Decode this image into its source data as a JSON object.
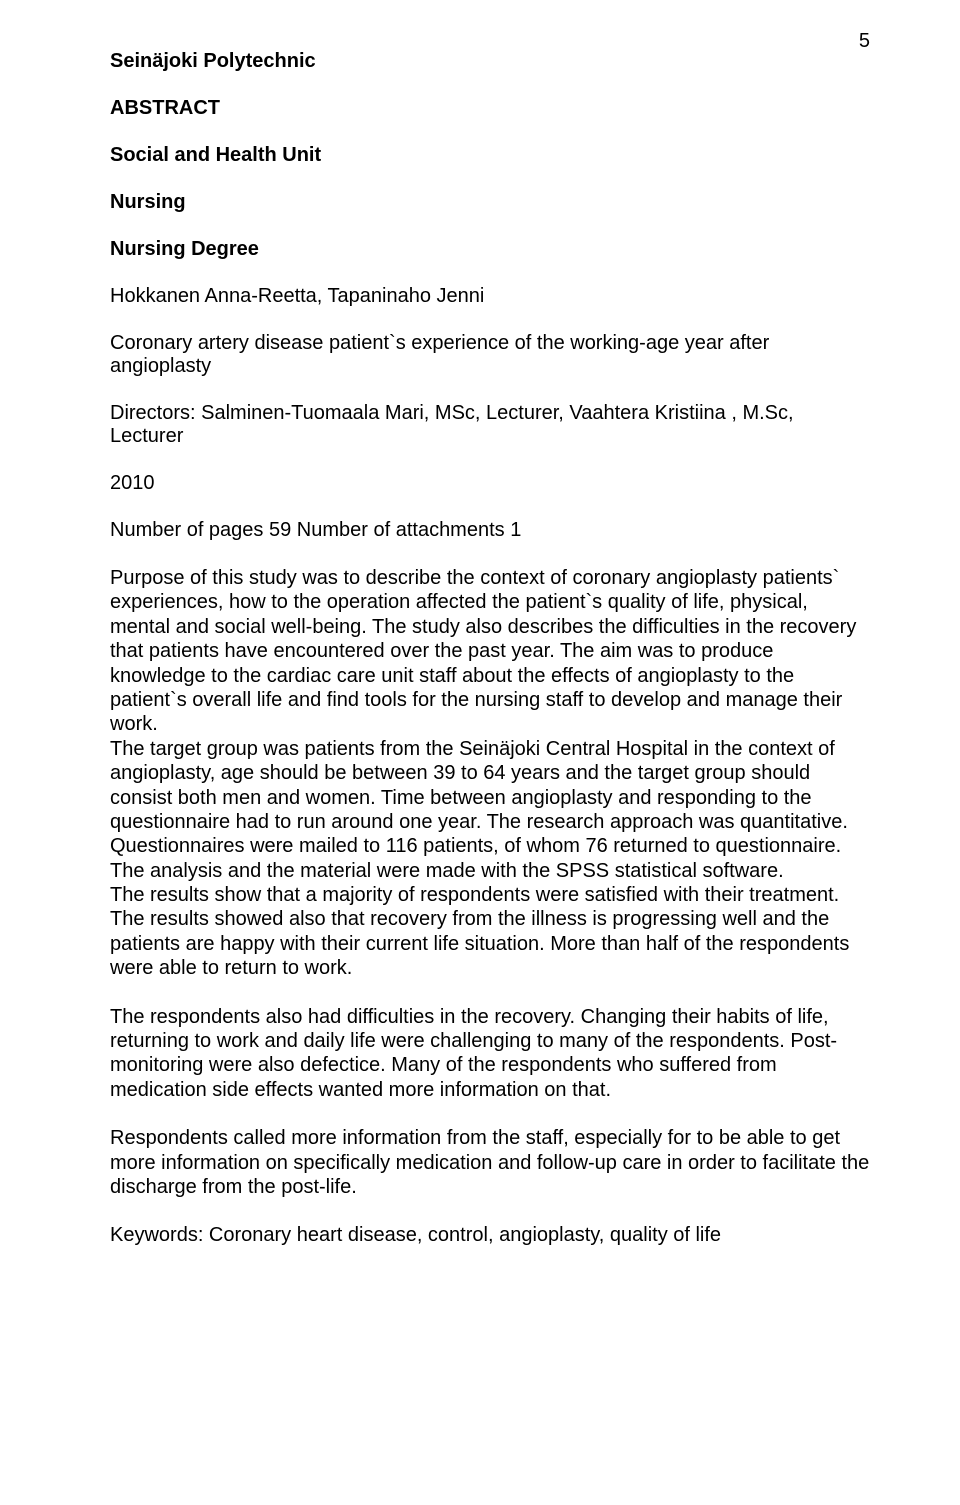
{
  "page_number": "5",
  "institution": "Seinäjoki Polytechnic",
  "abstract_label": "ABSTRACT",
  "unit": "Social and Health Unit",
  "program": "Nursing",
  "degree": "Nursing Degree",
  "authors": "Hokkanen Anna-Reetta, Tapaninaho Jenni",
  "title": "Coronary artery disease patient`s experience of the working-age year after angioplasty",
  "directors": "Directors: Salminen-Tuomaala Mari, MSc, Lecturer, Vaahtera Kristiina , M.Sc, Lecturer",
  "year": "2010",
  "pages_info": "Number of pages 59 Number of attachments  1",
  "para1": "Purpose of this study was to describe the context of coronary angioplasty patients` experiences, how to the operation affected the patient`s quality of life, physical, mental and social well-being. The study also describes the difficulties in the recovery that patients have encountered over the past year. The aim was to produce knowledge to the cardiac care unit staff about the effects of angioplasty to the patient`s overall life and find tools for the nursing staff to develop and manage their work.",
  "para2": "The target group was patients from the Seinäjoki Central Hospital in the context of angioplasty,  age should be between 39 to 64 years and the target group should consist both men and women. Time between angioplasty and responding to the questionnaire had to run around one year. The research approach was quantitative. Questionnaires were mailed to 116 patients, of whom 76 returned to questionnaire. The analysis and the material were made with the SPSS statistical software.",
  "para3": "The results show that a majority of respondents were satisfied with their treatment. The results showed also that recovery from the illness is progressing well and the patients are happy with their current life situation. More than half of the respondents were able to return to work.",
  "para4": "The respondents also had difficulties in the recovery. Changing their habits of life, returning to work and daily life were challenging to many of the respondents. Post-monitoring were also defectice. Many of the respondents who suffered from medication side effects wanted more information on that.",
  "para5": "Respondents called more information from the staff, especially for to be able to get more information on specifically medication and follow-up care in order to facilitate the discharge from the post-life.",
  "keywords": "Keywords: Coronary heart disease, control, angioplasty, quality of life"
}
